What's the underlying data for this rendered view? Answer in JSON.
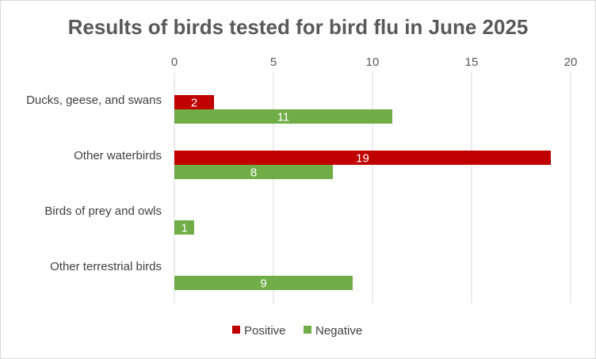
{
  "chart_data": {
    "type": "bar",
    "orientation": "horizontal",
    "title": "Results of birds tested for bird flu in June 2025",
    "categories": [
      "Ducks, geese, and swans",
      "Other waterbirds",
      "Birds of prey and owls",
      "Other terrestrial birds"
    ],
    "series": [
      {
        "name": "Positive",
        "color": "#c00000",
        "values": [
          2,
          19,
          0,
          0
        ]
      },
      {
        "name": "Negative",
        "color": "#70ad47",
        "values": [
          11,
          8,
          1,
          9
        ]
      }
    ],
    "xlim": [
      0,
      20
    ],
    "x_ticks": [
      0,
      5,
      10,
      15,
      20
    ],
    "x_axis_position": "top",
    "grid": true,
    "legend_position": "bottom"
  }
}
